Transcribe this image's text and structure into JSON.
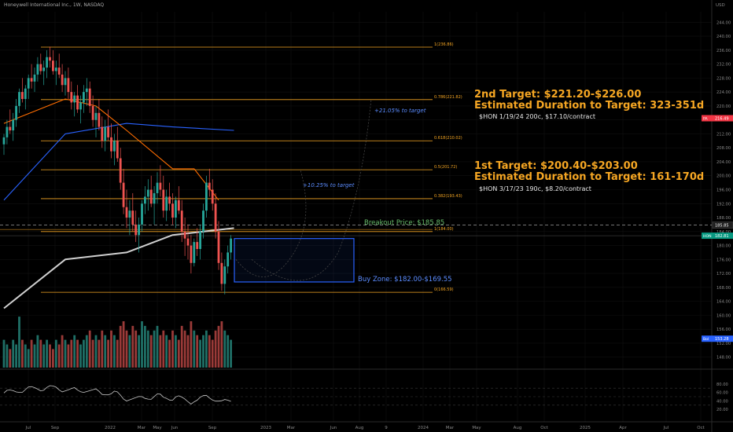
{
  "header": {
    "title": "Honeywell International Inc., 1W, NASDAQ"
  },
  "price_axis": {
    "currency": "USD",
    "ticks": [
      "244.00",
      "240.00",
      "236.00",
      "232.00",
      "228.00",
      "224.00",
      "220.00",
      "216.00",
      "212.00",
      "208.00",
      "204.00",
      "200.00",
      "196.00",
      "192.00",
      "188.00",
      "184.00",
      "180.00",
      "176.00",
      "172.00",
      "168.00",
      "164.00",
      "160.00",
      "156.00",
      "152.00",
      "148.00"
    ],
    "badges": [
      {
        "label": "PA",
        "value": "216.49",
        "color": "#f23645"
      },
      {
        "label": "",
        "value": "185.85",
        "color": "#1f1f1f"
      },
      {
        "label": "HON",
        "value": "182.81",
        "color": "#089981"
      },
      {
        "label": "Bol",
        "value": "153.28",
        "color": "#2962ff"
      }
    ]
  },
  "osc_axis": {
    "ticks": [
      "80.00",
      "60.00",
      "40.00",
      "20.00"
    ]
  },
  "time_axis": {
    "ticks": [
      "Jul",
      "Sep",
      "2022",
      "Mar",
      "May",
      "Jun",
      "Sep",
      "2023",
      "Mar",
      "Jun",
      "Aug",
      "9",
      "2024",
      "Mar",
      "May",
      "Aug",
      "Oct",
      "2025",
      "Apr",
      "Jul",
      "Oct"
    ]
  },
  "annotations": {
    "target2_title": "2nd Target: $221.20-$226.00",
    "target2_duration": "Estimated Duration to Target: 323-351d",
    "target2_option": "$HON 1/19/24 200c, $17.10/contract",
    "target1_title": "1st Target: $200.40-$203.00",
    "target1_duration": "Estimated Duration to Target: 161-170d",
    "target1_option": "$HON 3/17/23 190c, $8.20/contract",
    "breakout": "Breakout Price: $185.85",
    "buy_zone": "Buy Zone: $182.00-$169.55",
    "path1_pct": "+10.25% to target",
    "path2_pct": "+21.05% to target"
  },
  "fib_levels": [
    {
      "label": "1(236.86)",
      "price": 236.86
    },
    {
      "label": "0.786(221.82)",
      "price": 221.82
    },
    {
      "label": "0.618(210.02)",
      "price": 210.02
    },
    {
      "label": "0.5(201.72)",
      "price": 201.72
    },
    {
      "label": "0.382(193.43)",
      "price": 193.43
    },
    {
      "label": "1(184.00)",
      "price": 184.0
    },
    {
      "label": "0(166.59)",
      "price": 166.59
    }
  ],
  "colors": {
    "up": "#26a69a",
    "down": "#ef5350",
    "fib": "#f5a623",
    "target_text": "#f5a623",
    "breakout": "#66bb6a",
    "buy_zone": "#2962ff",
    "ma_blue": "#2962ff",
    "ma_orange": "#ff6d00",
    "ma_gray": "#d0d0d0"
  },
  "chart_data": {
    "type": "candlestick",
    "title": "Honeywell International Inc., 1W, NASDAQ",
    "ylim": [
      145,
      247
    ],
    "y_unit": "USD",
    "candles": [
      [
        209,
        212,
        206,
        211
      ],
      [
        211,
        216,
        209,
        214
      ],
      [
        214,
        219,
        212,
        213
      ],
      [
        213,
        218,
        210,
        216
      ],
      [
        216,
        222,
        214,
        220
      ],
      [
        220,
        225,
        218,
        224
      ],
      [
        224,
        228,
        221,
        222
      ],
      [
        222,
        226,
        219,
        225
      ],
      [
        225,
        229,
        222,
        228
      ],
      [
        228,
        232,
        225,
        227
      ],
      [
        227,
        231,
        224,
        229
      ],
      [
        229,
        234,
        227,
        232
      ],
      [
        232,
        235,
        229,
        230
      ],
      [
        230,
        233,
        226,
        231
      ],
      [
        231,
        236,
        228,
        234
      ],
      [
        234,
        237,
        231,
        233
      ],
      [
        233,
        236,
        229,
        230
      ],
      [
        230,
        233,
        226,
        231
      ],
      [
        231,
        235,
        228,
        229
      ],
      [
        229,
        232,
        224,
        226
      ],
      [
        226,
        230,
        223,
        228
      ],
      [
        228,
        231,
        222,
        224
      ],
      [
        224,
        227,
        219,
        221
      ],
      [
        221,
        224,
        217,
        223
      ],
      [
        223,
        226,
        218,
        219
      ],
      [
        219,
        223,
        215,
        221
      ],
      [
        221,
        226,
        218,
        224
      ],
      [
        224,
        228,
        220,
        225
      ],
      [
        225,
        227,
        218,
        220
      ],
      [
        220,
        223,
        214,
        216
      ],
      [
        216,
        220,
        211,
        218
      ],
      [
        218,
        222,
        213,
        214
      ],
      [
        214,
        217,
        208,
        210
      ],
      [
        210,
        216,
        207,
        214
      ],
      [
        214,
        219,
        210,
        211
      ],
      [
        211,
        215,
        205,
        207
      ],
      [
        207,
        212,
        203,
        210
      ],
      [
        210,
        214,
        204,
        205
      ],
      [
        205,
        208,
        196,
        198
      ],
      [
        198,
        202,
        189,
        191
      ],
      [
        191,
        196,
        185,
        188
      ],
      [
        188,
        193,
        183,
        190
      ],
      [
        190,
        195,
        184,
        186
      ],
      [
        186,
        190,
        181,
        183
      ],
      [
        183,
        188,
        178,
        186
      ],
      [
        186,
        193,
        184,
        192
      ],
      [
        192,
        197,
        189,
        194
      ],
      [
        194,
        199,
        190,
        196
      ],
      [
        196,
        200,
        191,
        192
      ],
      [
        192,
        197,
        186,
        195
      ],
      [
        195,
        201,
        192,
        198
      ],
      [
        198,
        203,
        194,
        196
      ],
      [
        196,
        200,
        188,
        190
      ],
      [
        190,
        196,
        187,
        194
      ],
      [
        194,
        198,
        190,
        192
      ],
      [
        192,
        195,
        186,
        188
      ],
      [
        188,
        194,
        185,
        193
      ],
      [
        193,
        197,
        189,
        190
      ],
      [
        190,
        193,
        181,
        184
      ],
      [
        184,
        188,
        177,
        182
      ],
      [
        182,
        186,
        176,
        180
      ],
      [
        180,
        183,
        172,
        175
      ],
      [
        175,
        182,
        174,
        181
      ],
      [
        181,
        185,
        177,
        179
      ],
      [
        179,
        186,
        176,
        184
      ],
      [
        184,
        192,
        182,
        190
      ],
      [
        190,
        200,
        188,
        198
      ],
      [
        198,
        202,
        194,
        196
      ],
      [
        196,
        199,
        190,
        192
      ],
      [
        192,
        195,
        182,
        184
      ],
      [
        184,
        187,
        173,
        175
      ],
      [
        175,
        178,
        167,
        169
      ],
      [
        169,
        176,
        166,
        174
      ],
      [
        174,
        180,
        172,
        178
      ],
      [
        178,
        183,
        176,
        182
      ]
    ],
    "volume_relative": [
      0.3,
      0.25,
      0.2,
      0.3,
      0.25,
      0.55,
      0.3,
      0.25,
      0.2,
      0.3,
      0.25,
      0.35,
      0.3,
      0.25,
      0.3,
      0.25,
      0.2,
      0.3,
      0.25,
      0.35,
      0.3,
      0.25,
      0.3,
      0.35,
      0.3,
      0.25,
      0.3,
      0.35,
      0.4,
      0.3,
      0.35,
      0.3,
      0.4,
      0.35,
      0.3,
      0.4,
      0.35,
      0.3,
      0.45,
      0.5,
      0.4,
      0.35,
      0.45,
      0.4,
      0.35,
      0.5,
      0.45,
      0.4,
      0.35,
      0.4,
      0.45,
      0.35,
      0.4,
      0.35,
      0.3,
      0.4,
      0.35,
      0.3,
      0.45,
      0.4,
      0.35,
      0.5,
      0.4,
      0.35,
      0.3,
      0.35,
      0.4,
      0.35,
      0.3,
      0.4,
      0.45,
      0.5,
      0.4,
      0.35,
      0.3
    ],
    "moving_averages": [
      {
        "color": "#2962ff",
        "values": [
          [
            0,
            193
          ],
          [
            20,
            212
          ],
          [
            40,
            215
          ],
          [
            55,
            214
          ],
          [
            75,
            213
          ]
        ]
      },
      {
        "color": "#ff6d00",
        "values": [
          [
            0,
            215
          ],
          [
            20,
            222
          ],
          [
            30,
            220
          ],
          [
            40,
            213
          ],
          [
            55,
            202
          ],
          [
            62,
            202
          ],
          [
            70,
            193
          ]
        ]
      },
      {
        "color": "#d0d0d0",
        "values": [
          [
            0,
            162
          ],
          [
            20,
            176
          ],
          [
            40,
            178
          ],
          [
            55,
            183
          ],
          [
            75,
            185
          ]
        ]
      }
    ],
    "oscillator": {
      "ylim": [
        0,
        100
      ],
      "levels": [
        70,
        50,
        30
      ]
    }
  }
}
